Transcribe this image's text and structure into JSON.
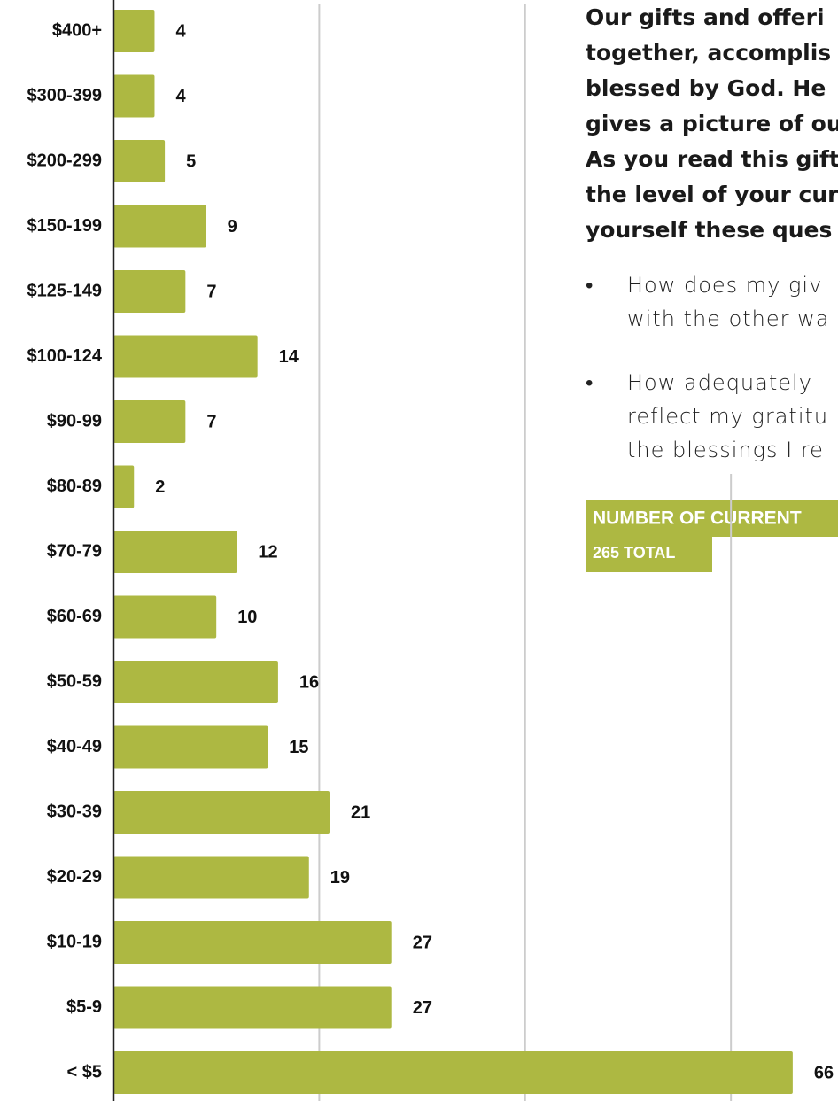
{
  "chart_data": {
    "type": "bar",
    "orientation": "horizontal",
    "title": "NUMBER OF CURRENT",
    "subtitle": "265 TOTAL",
    "categories": [
      "$400+",
      "$300-399",
      "$200-299",
      "$150-199",
      "$125-149",
      "$100-124",
      "$90-99",
      "$80-89",
      "$70-79",
      "$60-69",
      "$50-59",
      "$40-49",
      "$30-39",
      "$20-29",
      "$10-19",
      "$5-9",
      "< $5"
    ],
    "values": [
      4,
      4,
      5,
      9,
      7,
      14,
      7,
      2,
      12,
      10,
      16,
      15,
      21,
      19,
      27,
      27,
      66
    ],
    "color": "#adb842",
    "xlim": [
      0,
      70.4
    ],
    "xticks": [
      0,
      20,
      40,
      60
    ],
    "grid": true
  },
  "text_panel": {
    "paragraph_lines": [
      "Our gifts and offeri",
      "together, accomplis",
      "blessed by God. He",
      "gives a picture of ou",
      "As you read this gift",
      "the level of your cur",
      "yourself these ques"
    ],
    "bullets": [
      [
        "How does my giv",
        "with the other wa"
      ],
      [
        "How adequately",
        "reflect my gratitu",
        "the blessings I re"
      ]
    ]
  }
}
